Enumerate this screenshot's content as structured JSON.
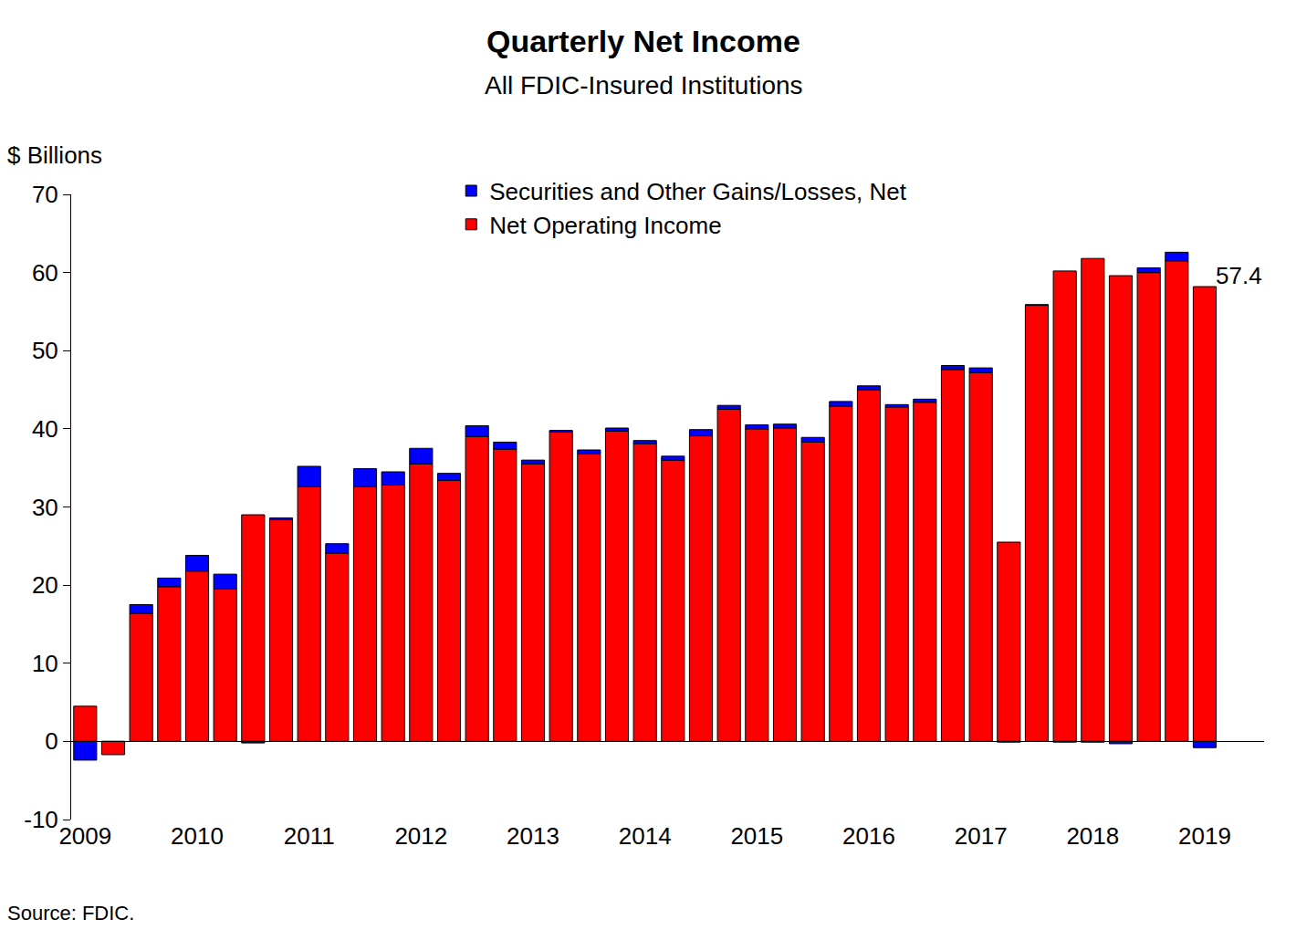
{
  "chart_data": {
    "type": "bar",
    "title": "Quarterly Net Income",
    "subtitle": "All FDIC-Insured Institutions",
    "ylabel": "$ Billions",
    "source": "Source: FDIC.",
    "stacked": true,
    "grid": false,
    "legend": "top",
    "categories": [
      "2009",
      null,
      null,
      null,
      "2010",
      null,
      null,
      null,
      "2011",
      null,
      null,
      null,
      "2012",
      null,
      null,
      null,
      "2013",
      null,
      null,
      null,
      "2014",
      null,
      null,
      null,
      "2015",
      null,
      null,
      null,
      "2016",
      null,
      null,
      null,
      "2017",
      null,
      null,
      null,
      "2018",
      null,
      null,
      null,
      "2019"
    ],
    "series": [
      {
        "name": "Net Operating Income",
        "color": "#ff0000",
        "values": [
          4.5,
          -1.7,
          16.4,
          19.8,
          21.8,
          19.5,
          29.0,
          28.4,
          32.6,
          24.1,
          32.6,
          32.8,
          35.5,
          33.4,
          39.0,
          37.4,
          35.5,
          39.6,
          36.8,
          39.7,
          38.1,
          36.0,
          39.1,
          42.5,
          40.0,
          40.1,
          38.3,
          42.9,
          45.0,
          42.8,
          43.4,
          47.6,
          47.2,
          25.5,
          55.8,
          60.2,
          61.8,
          59.6,
          60.0,
          61.5,
          58.2
        ]
      },
      {
        "name": "Securities and Other Gains/Losses, Net",
        "color": "#0000ff",
        "values": [
          -2.4,
          0.0,
          1.1,
          1.1,
          2.0,
          1.9,
          -0.2,
          0.2,
          2.6,
          1.2,
          2.3,
          1.7,
          2.0,
          0.9,
          1.4,
          0.9,
          0.5,
          0.2,
          0.5,
          0.4,
          0.4,
          0.5,
          0.8,
          0.5,
          0.5,
          0.5,
          0.6,
          0.6,
          0.5,
          0.3,
          0.4,
          0.5,
          0.6,
          -0.1,
          0.1,
          -0.1,
          -0.1,
          -0.3,
          0.6,
          1.1,
          -0.8
        ]
      }
    ],
    "ylim": [
      -10,
      70
    ],
    "yticks": [
      -10,
      0,
      10,
      20,
      30,
      40,
      50,
      60,
      70
    ],
    "annotations": [
      {
        "text": "57.4",
        "x": 40,
        "y": 57.4
      }
    ]
  }
}
